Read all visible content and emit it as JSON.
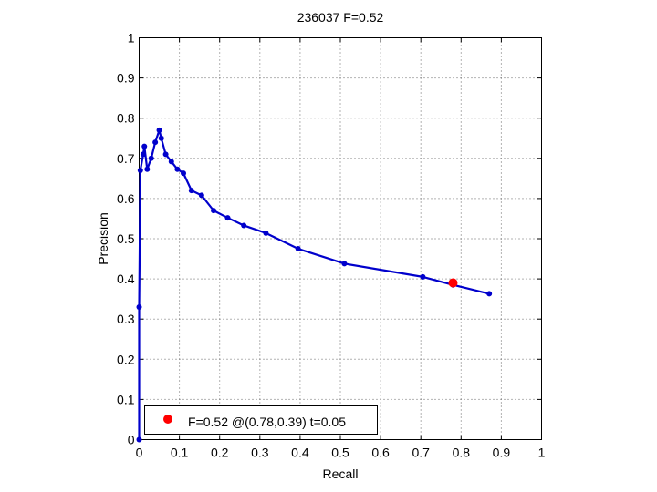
{
  "chart_data": {
    "type": "line",
    "title": "236037 F=0.52",
    "xlabel": "Recall",
    "ylabel": "Precision",
    "xlim": [
      0,
      1
    ],
    "ylim": [
      0,
      1
    ],
    "xticks": [
      0,
      0.1,
      0.2,
      0.3,
      0.4,
      0.5,
      0.6,
      0.7,
      0.8,
      0.9,
      1
    ],
    "yticks": [
      0,
      0.1,
      0.2,
      0.3,
      0.4,
      0.5,
      0.6,
      0.7,
      0.8,
      0.9,
      1
    ],
    "xtick_labels": [
      "0",
      "0.1",
      "0.2",
      "0.3",
      "0.4",
      "0.5",
      "0.6",
      "0.7",
      "0.8",
      "0.9",
      "1"
    ],
    "ytick_labels": [
      "0",
      "0.1",
      "0.2",
      "0.3",
      "0.4",
      "0.5",
      "0.6",
      "0.7",
      "0.8",
      "0.9",
      "1"
    ],
    "grid": true,
    "series": [
      {
        "color": "#0000cc",
        "points": [
          [
            0.0,
            0.0
          ],
          [
            0.0,
            0.33
          ],
          [
            0.003,
            0.67
          ],
          [
            0.01,
            0.71
          ],
          [
            0.013,
            0.73
          ],
          [
            0.02,
            0.673
          ],
          [
            0.03,
            0.7
          ],
          [
            0.04,
            0.74
          ],
          [
            0.05,
            0.77
          ],
          [
            0.055,
            0.75
          ],
          [
            0.066,
            0.71
          ],
          [
            0.08,
            0.692
          ],
          [
            0.095,
            0.673
          ],
          [
            0.11,
            0.663
          ],
          [
            0.13,
            0.62
          ],
          [
            0.155,
            0.608
          ],
          [
            0.185,
            0.57
          ],
          [
            0.22,
            0.552
          ],
          [
            0.26,
            0.533
          ],
          [
            0.315,
            0.514
          ],
          [
            0.395,
            0.475
          ],
          [
            0.51,
            0.438
          ],
          [
            0.705,
            0.405
          ],
          [
            0.78,
            0.385
          ],
          [
            0.87,
            0.363
          ]
        ]
      }
    ],
    "highlight": {
      "recall": 0.78,
      "precision": 0.39,
      "color": "#ff0000"
    },
    "legend": {
      "position": "bottom-left",
      "entries": [
        {
          "label": "F=0.52 @(0.78,0.39) t=0.05",
          "color": "#ff0000"
        }
      ]
    }
  }
}
